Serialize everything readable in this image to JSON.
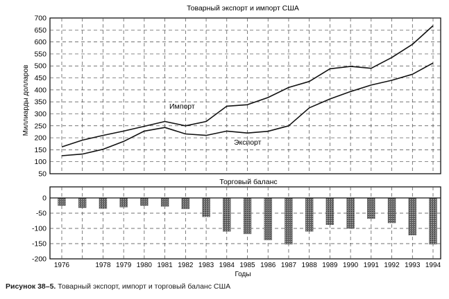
{
  "figure": {
    "caption_label": "Рисунок  38–5.",
    "caption_text": " Товарный экспорт, импорт и торговый баланс США"
  },
  "chart_data": [
    {
      "type": "line",
      "title": "Товарный экспорт и импорт США",
      "xlabel": "",
      "ylabel": "Миллиарды долларов",
      "ylim": [
        50,
        700
      ],
      "yticks": [
        50,
        100,
        150,
        200,
        250,
        300,
        350,
        400,
        450,
        500,
        550,
        600,
        650,
        700
      ],
      "x": [
        1976,
        1977,
        1978,
        1979,
        1980,
        1981,
        1982,
        1983,
        1984,
        1985,
        1986,
        1987,
        1988,
        1989,
        1990,
        1991,
        1992,
        1993,
        1994
      ],
      "series": [
        {
          "name": "Импорт",
          "values": [
            162,
            190,
            210,
            228,
            248,
            268,
            250,
            268,
            332,
            338,
            368,
            410,
            435,
            488,
            498,
            490,
            535,
            590,
            668
          ]
        },
        {
          "name": "Экспорт",
          "values": [
            125,
            132,
            152,
            185,
            228,
            243,
            216,
            210,
            228,
            220,
            227,
            250,
            325,
            362,
            393,
            420,
            440,
            465,
            512
          ]
        }
      ],
      "grid": true
    },
    {
      "type": "bar",
      "title": "Торговый баланс",
      "xlabel": "Годы",
      "ylabel": "",
      "ylim": [
        -200,
        0
      ],
      "yticks": [
        0,
        -50,
        -100,
        -150,
        -200
      ],
      "categories": [
        "1976",
        "1977",
        "1978",
        "1979",
        "1980",
        "1981",
        "1982",
        "1983",
        "1984",
        "1985",
        "1986",
        "1987",
        "1988",
        "1989",
        "1990",
        "1991",
        "1992",
        "1993",
        "1994"
      ],
      "values": [
        -25,
        -32,
        -35,
        -30,
        -25,
        -28,
        -36,
        -62,
        -110,
        -118,
        -138,
        -152,
        -110,
        -88,
        -100,
        -68,
        -82,
        -122,
        -152
      ],
      "xtick_labels": [
        "1976",
        "1978",
        "1979",
        "1980",
        "1981",
        "1982",
        "1983",
        "1984",
        "1985",
        "1986",
        "1987",
        "1988",
        "1989",
        "1990",
        "1991",
        "1992",
        "1993",
        "1994"
      ],
      "grid": true
    }
  ]
}
